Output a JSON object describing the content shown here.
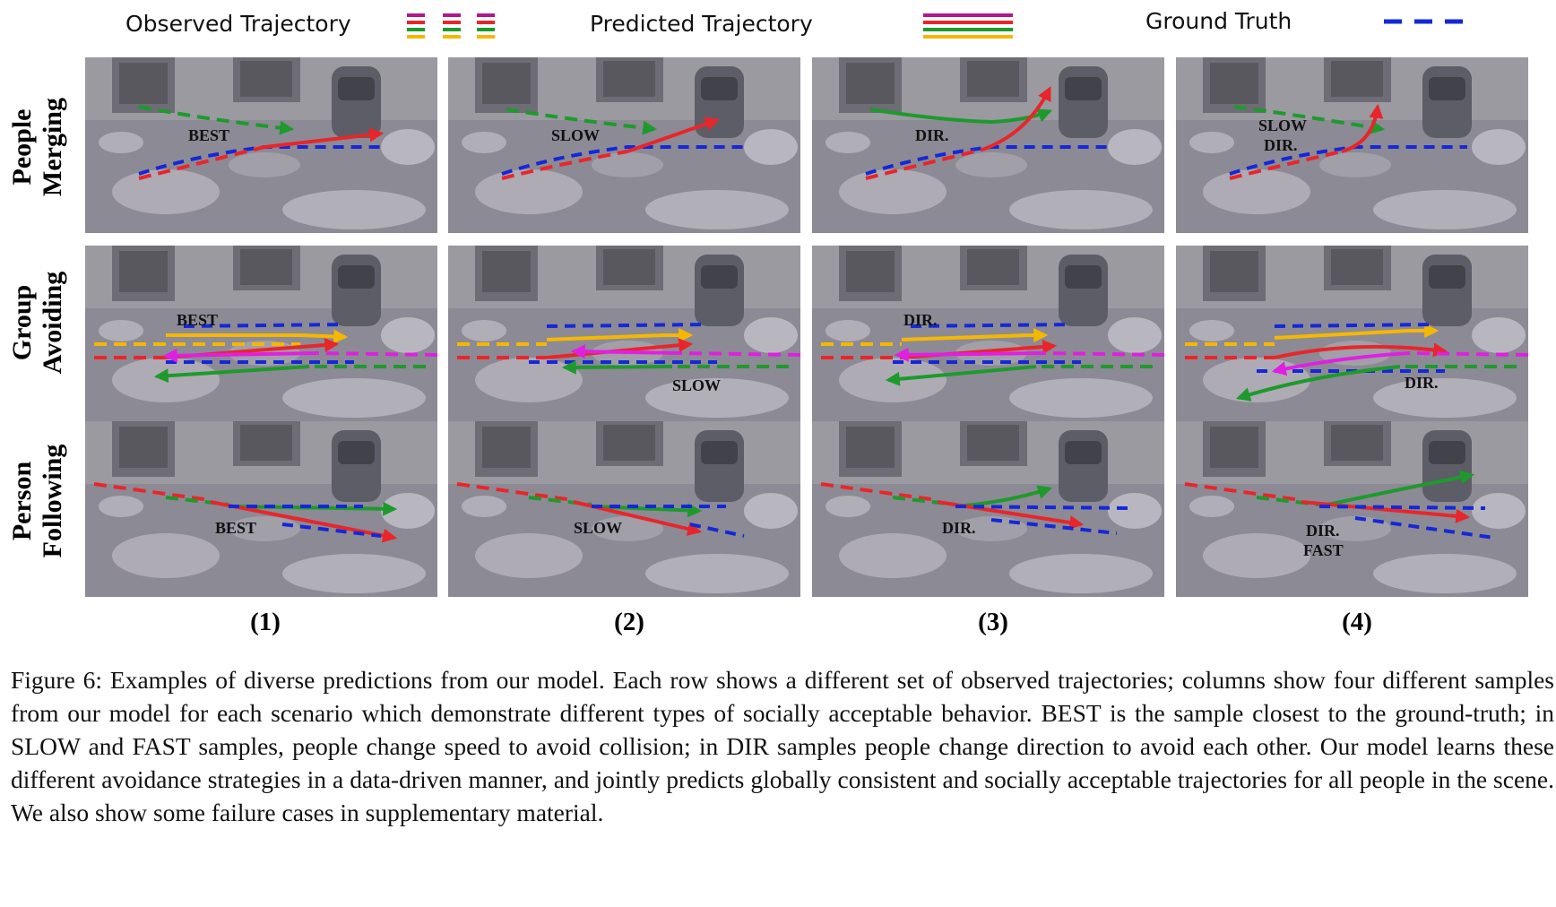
{
  "legend": {
    "observed_label": "Observed Trajectory",
    "predicted_label": "Predicted Trajectory",
    "ground_truth_label": "Ground Truth",
    "colors": {
      "red": "#e8262a",
      "magenta": "#b0168f",
      "green": "#1e9a2c",
      "yellow": "#f5b800",
      "blue": "#1428d8"
    }
  },
  "rows": [
    {
      "line1": "People",
      "line2": "Merging"
    },
    {
      "line1": "Group",
      "line2": "Avoiding"
    },
    {
      "line1": "Person",
      "line2": "Following"
    }
  ],
  "columns": [
    "(1)",
    "(2)",
    "(3)",
    "(4)"
  ],
  "panel_tags": [
    [
      "BEST",
      "SLOW",
      "DIR.",
      "SLOW DIR."
    ],
    [
      "BEST",
      "SLOW",
      "DIR.",
      "DIR."
    ],
    [
      "BEST",
      "SLOW",
      "DIR.",
      "DIR. FAST"
    ]
  ],
  "caption": "Figure 6: Examples of diverse predictions from our model. Each row shows a different set of observed trajectories; columns show four different samples from our model for each scenario which demonstrate different types of socially acceptable behavior.  BEST is the sample closest to the ground-truth; in SLOW and FAST samples, people change speed to avoid collision; in DIR samples people change direction to avoid each other. Our model learns these different avoidance strategies in a data-driven manner, and jointly predicts globally consistent and socially acceptable trajectories for all people in the scene. We also show some failure cases in supplementary material."
}
